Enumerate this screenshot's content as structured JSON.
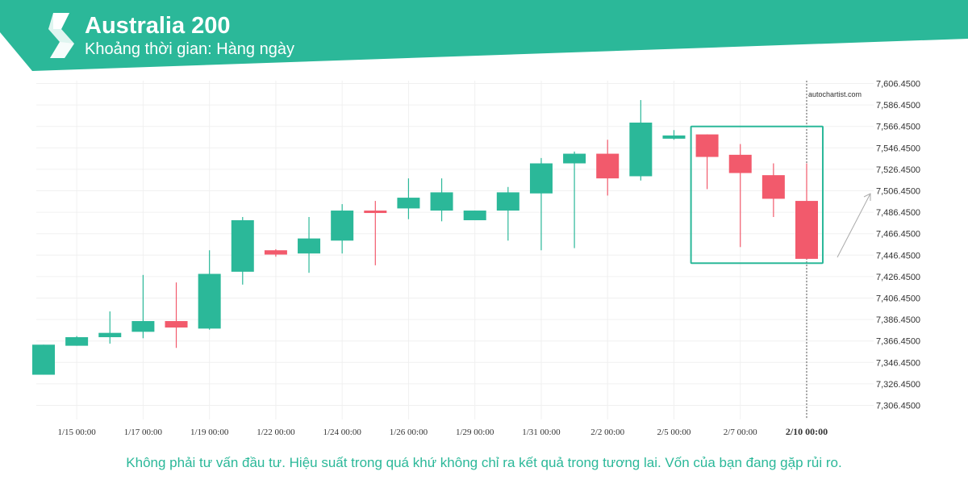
{
  "header": {
    "title": "Australia 200",
    "subtitle": "Khoảng thời gian: Hàng ngày"
  },
  "watermark": "autochartist.com",
  "disclaimer": "Không phải tư vấn đầu tư. Hiệu suất trong quá khứ không chỉ ra kết quả trong tương lai. Vốn của bạn đang gặp rủi ro.",
  "colors": {
    "brand": "#2bb899",
    "bullish": "#2bb899",
    "bearish": "#f25a6c",
    "highlight_box": "#2bb899",
    "grid": "#f0f0f0",
    "axis_text": "#333333"
  },
  "chart_data": {
    "type": "candlestick",
    "title": "Australia 200",
    "ylim": [
      7286.45,
      7616.45
    ],
    "y_axis_position": "right",
    "yticks": [
      "7,606.4500",
      "7,586.4500",
      "7,566.4500",
      "7,546.4500",
      "7,526.4500",
      "7,506.4500",
      "7,486.4500",
      "7,466.4500",
      "7,446.4500",
      "7,426.4500",
      "7,406.4500",
      "7,386.4500",
      "7,366.4500",
      "7,346.4500",
      "7,326.4500",
      "7,306.4500"
    ],
    "ytick_values": [
      7606.45,
      7586.45,
      7566.45,
      7546.45,
      7526.45,
      7506.45,
      7486.45,
      7466.45,
      7446.45,
      7426.45,
      7406.45,
      7386.45,
      7366.45,
      7346.45,
      7326.45,
      7306.45
    ],
    "xtick_labels": [
      {
        "label": "1/15 00:00",
        "candle": 1
      },
      {
        "label": "1/17 00:00",
        "candle": 3
      },
      {
        "label": "1/19 00:00",
        "candle": 5
      },
      {
        "label": "1/22 00:00",
        "candle": 7
      },
      {
        "label": "1/24 00:00",
        "candle": 9
      },
      {
        "label": "1/26 00:00",
        "candle": 11
      },
      {
        "label": "1/29 00:00",
        "candle": 13
      },
      {
        "label": "1/31 00:00",
        "candle": 15
      },
      {
        "label": "2/2 00:00",
        "candle": 17
      },
      {
        "label": "2/5 00:00",
        "candle": 19
      },
      {
        "label": "2/7 00:00",
        "candle": 21
      },
      {
        "label": "2/10 00:00",
        "candle": 23,
        "bold": true
      }
    ],
    "grid": true,
    "candles": [
      {
        "open": 7335,
        "high": 7363,
        "low": 7335,
        "close": 7363
      },
      {
        "open": 7362,
        "high": 7371,
        "low": 7362,
        "close": 7370
      },
      {
        "open": 7370,
        "high": 7394,
        "low": 7364,
        "close": 7374
      },
      {
        "open": 7375,
        "high": 7428,
        "low": 7369,
        "close": 7385
      },
      {
        "open": 7385,
        "high": 7421,
        "low": 7360,
        "close": 7379
      },
      {
        "open": 7378,
        "high": 7451,
        "low": 7377,
        "close": 7429
      },
      {
        "open": 7431,
        "high": 7482,
        "low": 7419,
        "close": 7479
      },
      {
        "open": 7451,
        "high": 7452,
        "low": 7445,
        "close": 7447
      },
      {
        "open": 7448,
        "high": 7482,
        "low": 7430,
        "close": 7462
      },
      {
        "open": 7460,
        "high": 7494,
        "low": 7448,
        "close": 7488
      },
      {
        "open": 7488,
        "high": 7497,
        "low": 7437,
        "close": 7487
      },
      {
        "open": 7490,
        "high": 7518,
        "low": 7480,
        "close": 7500
      },
      {
        "open": 7488,
        "high": 7518,
        "low": 7478,
        "close": 7505
      },
      {
        "open": 7479,
        "high": 7488,
        "low": 7479,
        "close": 7488
      },
      {
        "open": 7488,
        "high": 7510,
        "low": 7460,
        "close": 7505
      },
      {
        "open": 7504,
        "high": 7537,
        "low": 7451,
        "close": 7532
      },
      {
        "open": 7532,
        "high": 7543,
        "low": 7453,
        "close": 7541
      },
      {
        "open": 7541,
        "high": 7554,
        "low": 7502,
        "close": 7518
      },
      {
        "open": 7520,
        "high": 7591,
        "low": 7516,
        "close": 7570
      },
      {
        "open": 7555,
        "high": 7563,
        "low": 7554,
        "close": 7558
      },
      {
        "open": 7559,
        "high": 7559,
        "low": 7508,
        "close": 7538
      },
      {
        "open": 7540,
        "high": 7550,
        "low": 7454,
        "close": 7523
      },
      {
        "open": 7521,
        "high": 7532,
        "low": 7482,
        "close": 7499
      },
      {
        "open": 7497,
        "high": 7532,
        "low": 7443,
        "close": 7443
      }
    ],
    "pattern_box": {
      "from_candle": 20,
      "to_candle": 23,
      "y_top": 7566.45,
      "y_bottom": 7439.0
    },
    "current_time_candle": 23
  }
}
